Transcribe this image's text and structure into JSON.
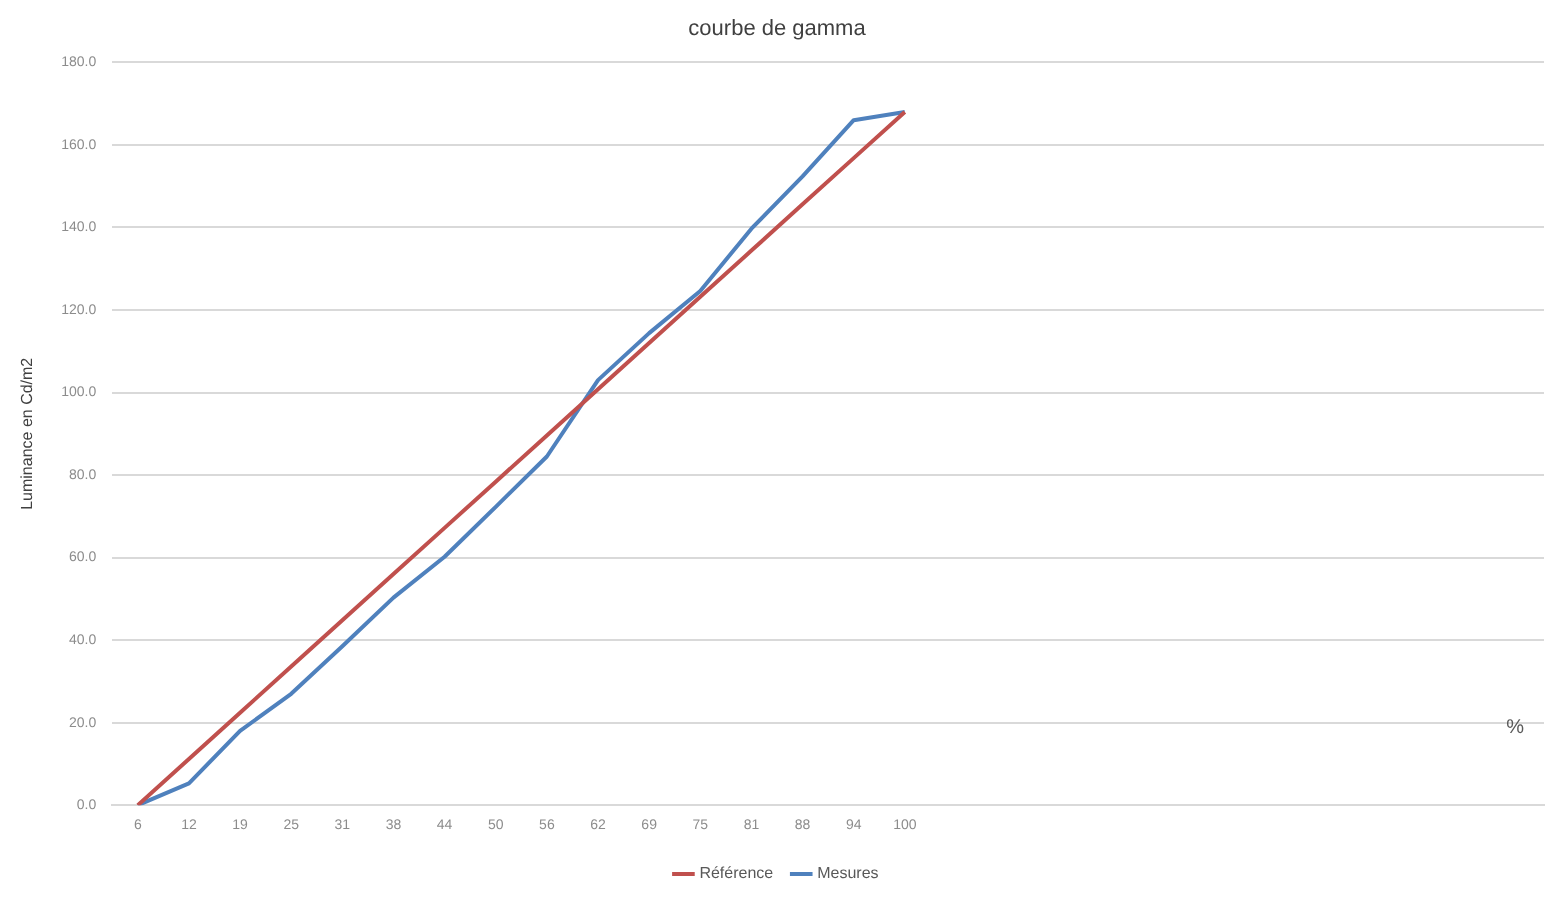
{
  "chart_data": {
    "type": "line",
    "title": "courbe de gamma",
    "xlabel": "%",
    "ylabel": "Luminance en Cd/m2",
    "categories": [
      "6",
      "12",
      "19",
      "25",
      "31",
      "38",
      "44",
      "50",
      "56",
      "62",
      "69",
      "75",
      "81",
      "88",
      "94",
      "100",
      null,
      null,
      null,
      null,
      null,
      null,
      null,
      null,
      null,
      null,
      null,
      null
    ],
    "series": [
      {
        "name": "Référence",
        "color": "#c0504d",
        "values": [
          0,
          11.2,
          22.4,
          33.6,
          44.8,
          56,
          67.2,
          78.4,
          89.6,
          100.8,
          112,
          123.2,
          134.4,
          145.6,
          156.8,
          168,
          null,
          null,
          null,
          null,
          null,
          null,
          null,
          null,
          null,
          null,
          null,
          null
        ]
      },
      {
        "name": "Mesures",
        "color": "#4f81bd",
        "values": [
          0,
          5.3,
          18,
          27,
          38.5,
          50.3,
          60.2,
          72.3,
          84.5,
          103,
          114.4,
          124.6,
          139.7,
          152.4,
          166,
          168,
          null,
          null,
          null,
          null,
          null,
          null,
          null,
          null,
          null,
          null,
          null,
          null
        ]
      }
    ],
    "ylim": [
      0,
      180
    ],
    "yticks": [
      {
        "value": 0,
        "label": "0.0"
      },
      {
        "value": 20,
        "label": "20.0"
      },
      {
        "value": 40,
        "label": "40.0"
      },
      {
        "value": 60,
        "label": "60.0"
      },
      {
        "value": 80,
        "label": "80.0"
      },
      {
        "value": 100,
        "label": "100.0"
      },
      {
        "value": 120,
        "label": "120.0"
      },
      {
        "value": 140,
        "label": "140.0"
      },
      {
        "value": 160,
        "label": "160.0"
      },
      {
        "value": 180,
        "label": "180.0"
      }
    ],
    "grid": "y",
    "legend": "bottom",
    "marker": "none",
    "line_style": "solid"
  }
}
